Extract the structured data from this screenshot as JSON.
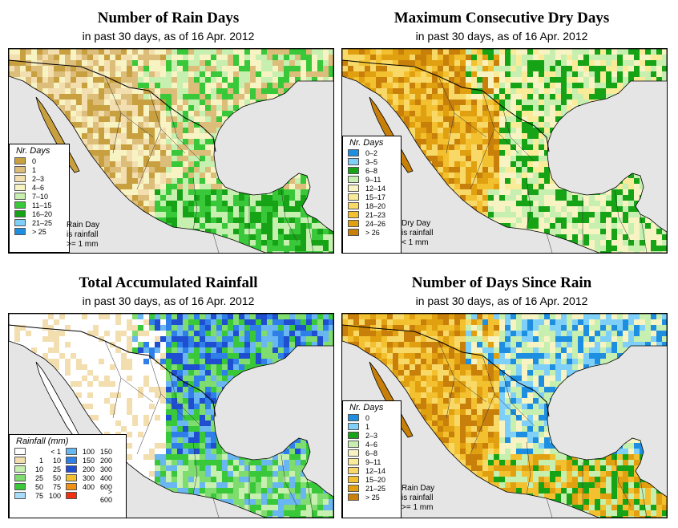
{
  "panels": [
    {
      "title": "Number of Rain Days",
      "subtitle": "in past 30 days, as of  16 Apr. 2012",
      "legend_title": "Nr. Days",
      "legend": [
        {
          "label": "0",
          "color": "#c8a040"
        },
        {
          "label": "1",
          "color": "#dcbd7a"
        },
        {
          "label": "2–3",
          "color": "#f3deb0"
        },
        {
          "label": "4–6",
          "color": "#f8f3c2"
        },
        {
          "label": "7–10",
          "color": "#c6efb0"
        },
        {
          "label": "11–15",
          "color": "#39c839"
        },
        {
          "label": "16–20",
          "color": "#16a316"
        },
        {
          "label": "21–25",
          "color": "#7fd0f8"
        },
        {
          "label": "> 25",
          "color": "#1e8fe0"
        }
      ],
      "note": [
        "Rain Day",
        "is rainfall",
        ">= 1 mm"
      ]
    },
    {
      "title": "Maximum Consecutive Dry Days",
      "subtitle": "in past 30 days, as of  16 Apr. 2012",
      "legend_title": "Nr. Days",
      "legend": [
        {
          "label": "0–2",
          "color": "#1e8fe0"
        },
        {
          "label": "3–5",
          "color": "#7fd0f8"
        },
        {
          "label": "6–8",
          "color": "#16a316"
        },
        {
          "label": "9–11",
          "color": "#c6efb0"
        },
        {
          "label": "12–14",
          "color": "#f8f3c2"
        },
        {
          "label": "15–17",
          "color": "#faeb99"
        },
        {
          "label": "18–20",
          "color": "#f8d968"
        },
        {
          "label": "21–23",
          "color": "#f3c030"
        },
        {
          "label": "24–26",
          "color": "#e0a010"
        },
        {
          "label": "> 26",
          "color": "#c8800a"
        }
      ],
      "note": [
        "Dry Day",
        "is rainfall",
        "< 1 mm"
      ]
    },
    {
      "title": "Total Accumulated Rainfall",
      "subtitle": "in past 30 days, as of  16 Apr. 2012",
      "legend_title": "Rainfall (mm)",
      "legend_left": [
        {
          "lo": "",
          "hi": "< 1",
          "color": "#ffffff"
        },
        {
          "lo": "1",
          "hi": "10",
          "color": "#f3deb0"
        },
        {
          "lo": "10",
          "hi": "25",
          "color": "#c6efb0"
        },
        {
          "lo": "25",
          "hi": "50",
          "color": "#7fdc6f"
        },
        {
          "lo": "50",
          "hi": "75",
          "color": "#39c839"
        },
        {
          "lo": "75",
          "hi": "100",
          "color": "#a8dcf8"
        }
      ],
      "legend_right": [
        {
          "lo": "100",
          "hi": "150",
          "color": "#6ab6f0"
        },
        {
          "lo": "150",
          "hi": "200",
          "color": "#2f7fe8"
        },
        {
          "lo": "200",
          "hi": "300",
          "color": "#1f4fd0"
        },
        {
          "lo": "300",
          "hi": "400",
          "color": "#f3c030"
        },
        {
          "lo": "400",
          "hi": "600",
          "color": "#f39010"
        },
        {
          "lo": "",
          "hi": "> 600",
          "color": "#f03010"
        }
      ]
    },
    {
      "title": "Number of Days Since Rain",
      "subtitle": "in past 30 days, as of  16 Apr. 2012",
      "legend_title": "Nr. Days",
      "legend": [
        {
          "label": "0",
          "color": "#1e8fe0"
        },
        {
          "label": "1",
          "color": "#7fd0f8"
        },
        {
          "label": "2–3",
          "color": "#16a316"
        },
        {
          "label": "4–6",
          "color": "#c6efb0"
        },
        {
          "label": "6–8",
          "color": "#f8f3c2"
        },
        {
          "label": "9–11",
          "color": "#faeb99"
        },
        {
          "label": "12–14",
          "color": "#f8d968"
        },
        {
          "label": "15–20",
          "color": "#f3c030"
        },
        {
          "label": "21–25",
          "color": "#e0a010"
        },
        {
          "label": "> 25",
          "color": "#c8800a"
        }
      ],
      "note": [
        "Rain Day",
        "is rainfall",
        ">= 1 mm"
      ]
    }
  ]
}
